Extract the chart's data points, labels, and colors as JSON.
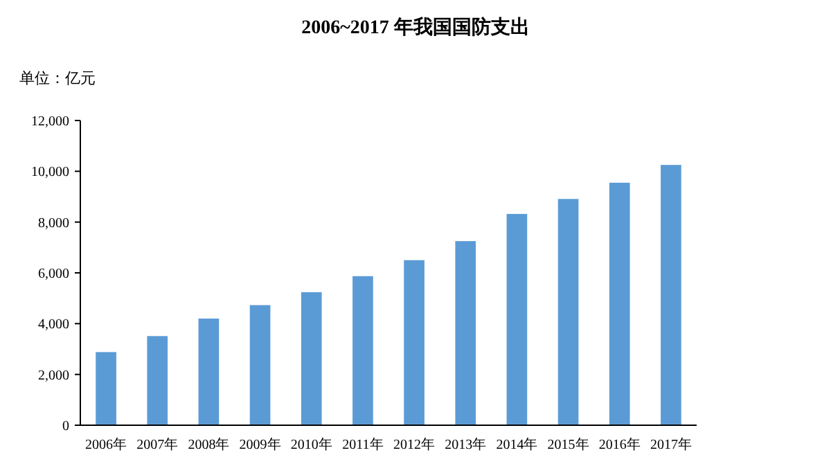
{
  "chart_data": {
    "type": "bar",
    "title": "2006~2017 年我国国防支出",
    "ylabel": "单位：亿元",
    "categories": [
      "2006年",
      "2007年",
      "2008年",
      "2009年",
      "2010年",
      "2011年",
      "2012年",
      "2013年",
      "2014年",
      "2015年",
      "2016年",
      "2017年"
    ],
    "values": [
      2880,
      3510,
      4200,
      4730,
      5240,
      5870,
      6500,
      7250,
      8320,
      8910,
      9550,
      10250
    ],
    "color": "#5b9bd5",
    "ylim": [
      0,
      12000
    ],
    "yticks": [
      {
        "value": 0,
        "label": "0"
      },
      {
        "value": 2000,
        "label": "2,000"
      },
      {
        "value": 4000,
        "label": "4,000"
      },
      {
        "value": 6000,
        "label": "6,000"
      },
      {
        "value": 8000,
        "label": "8,000"
      },
      {
        "value": 10000,
        "label": "10,000"
      },
      {
        "value": 12000,
        "label": "12,000"
      }
    ],
    "grid": false
  }
}
